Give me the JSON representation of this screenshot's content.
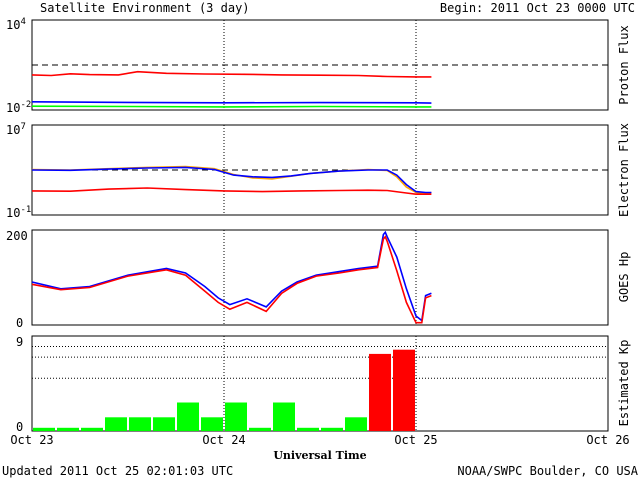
{
  "header": {
    "title": "Satellite Environment (3 day)",
    "begin": "Begin:  2011 Oct 23 0000 UTC"
  },
  "footer": {
    "updated": "Updated 2011 Oct 25 02:01:03 UTC",
    "credit": "NOAA/SWPC Boulder, CO USA"
  },
  "xaxis": {
    "label": "Universal Time",
    "ticks": [
      "Oct 23",
      "Oct 24",
      "Oct 25",
      "Oct 26"
    ]
  },
  "colors": {
    "red": "#ff0000",
    "blue": "#0000ff",
    "green": "#00ff00",
    "orange": "#ffa500"
  },
  "chart_data": [
    {
      "type": "line",
      "name": "proton-flux",
      "ylabel": "Proton Flux",
      "yscale": "log",
      "ylim": [
        0.01,
        10000
      ],
      "ytick_labels": [
        {
          "base": "10",
          "exp": "4"
        },
        {
          "base": "10",
          "exp": "-2"
        }
      ],
      "threshold": 10,
      "x_unit": "days since Oct 23 0000 UTC",
      "series": [
        {
          "color": "#ff0000",
          "x": [
            0,
            0.1,
            0.2,
            0.3,
            0.45,
            0.55,
            0.7,
            0.9,
            1.1,
            1.3,
            1.5,
            1.7,
            1.85,
            2.0,
            2.08
          ],
          "y": [
            2.2,
            2.0,
            2.6,
            2.3,
            2.2,
            3.6,
            2.8,
            2.5,
            2.4,
            2.2,
            2.1,
            2.0,
            1.7,
            1.6,
            1.6
          ]
        },
        {
          "color": "#0000ff",
          "x": [
            0,
            0.5,
            1.0,
            1.5,
            2.0,
            2.08
          ],
          "y": [
            0.035,
            0.032,
            0.03,
            0.031,
            0.03,
            0.029
          ]
        },
        {
          "color": "#00ff00",
          "x": [
            0,
            0.5,
            1.0,
            1.5,
            2.0,
            2.08
          ],
          "y": [
            0.018,
            0.017,
            0.016,
            0.017,
            0.016,
            0.016
          ]
        }
      ]
    },
    {
      "type": "line",
      "name": "electron-flux",
      "ylabel": "Electron Flux",
      "yscale": "log",
      "ylim": [
        0.1,
        10000000
      ],
      "ytick_labels": [
        {
          "base": "10",
          "exp": "7"
        },
        {
          "base": "10",
          "exp": "-1"
        }
      ],
      "threshold": 1000,
      "x_unit": "days since Oct 23 0000 UTC",
      "series": [
        {
          "color": "#ffa500",
          "x": [
            0,
            0.2,
            0.4,
            0.6,
            0.8,
            0.95,
            1.05,
            1.15,
            1.25,
            1.35,
            1.45,
            1.6,
            1.75,
            1.85,
            1.9,
            1.95,
            2.0,
            2.05,
            2.08
          ],
          "y": [
            1100,
            1000,
            1300,
            1700,
            2000,
            1300,
            400,
            200,
            160,
            280,
            500,
            800,
            1100,
            900,
            250,
            30,
            10,
            8,
            10
          ]
        },
        {
          "color": "#0000ff",
          "x": [
            0,
            0.2,
            0.4,
            0.6,
            0.8,
            0.95,
            1.05,
            1.15,
            1.25,
            1.35,
            1.45,
            1.6,
            1.75,
            1.85,
            1.9,
            1.95,
            2.0,
            2.05,
            2.08
          ],
          "y": [
            1000,
            950,
            1200,
            1500,
            1700,
            1100,
            350,
            250,
            220,
            300,
            500,
            800,
            1000,
            1000,
            350,
            50,
            12,
            10,
            10
          ]
        },
        {
          "color": "#ff0000",
          "x": [
            0,
            0.2,
            0.4,
            0.6,
            0.8,
            1.0,
            1.2,
            1.4,
            1.6,
            1.75,
            1.85,
            1.95,
            2.0,
            2.08
          ],
          "y": [
            14,
            13,
            20,
            25,
            18,
            14,
            12,
            14,
            15,
            16,
            15,
            9,
            7,
            7
          ]
        }
      ]
    },
    {
      "type": "line",
      "name": "goes-hp",
      "ylabel": "GOES Hp",
      "ylim": [
        0,
        210
      ],
      "ytick_labels": [
        "200",
        "0"
      ],
      "x_unit": "days since Oct 23 0000 UTC",
      "series": [
        {
          "color": "#0000ff",
          "x": [
            0,
            0.15,
            0.3,
            0.5,
            0.7,
            0.8,
            0.9,
            0.97,
            1.03,
            1.12,
            1.22,
            1.3,
            1.38,
            1.48,
            1.6,
            1.7,
            1.8,
            1.83,
            1.84,
            1.85,
            1.9,
            1.95,
            2.0,
            2.03,
            2.05,
            2.08
          ],
          "y": [
            95,
            80,
            85,
            110,
            125,
            115,
            85,
            60,
            45,
            58,
            40,
            75,
            95,
            110,
            118,
            125,
            130,
            200,
            205,
            195,
            150,
            80,
            20,
            10,
            65,
            70
          ]
        },
        {
          "color": "#ff0000",
          "x": [
            0,
            0.15,
            0.3,
            0.5,
            0.7,
            0.8,
            0.9,
            0.97,
            1.03,
            1.12,
            1.22,
            1.3,
            1.38,
            1.48,
            1.6,
            1.7,
            1.8,
            1.83,
            1.84,
            1.85,
            1.9,
            1.95,
            2.0,
            2.03,
            2.05,
            2.08
          ],
          "y": [
            90,
            78,
            83,
            108,
            122,
            110,
            75,
            50,
            35,
            50,
            30,
            70,
            92,
            108,
            115,
            122,
            127,
            190,
            195,
            185,
            120,
            50,
            5,
            5,
            60,
            65
          ]
        }
      ]
    },
    {
      "type": "bar",
      "name": "estimated-kp",
      "ylabel": "Estimated Kp",
      "ylim": [
        0,
        9
      ],
      "ytick_labels": [
        "9",
        "0"
      ],
      "x_unit": "3-hour intervals from Oct 23 0000 UTC",
      "values": [
        0.3,
        0.3,
        0.3,
        1.3,
        1.3,
        1.3,
        2.7,
        1.3,
        2.7,
        0.3,
        2.7,
        0.3,
        0.3,
        1.3,
        7.3,
        7.7
      ],
      "bar_colors": [
        "#00ff00",
        "#00ff00",
        "#00ff00",
        "#00ff00",
        "#00ff00",
        "#00ff00",
        "#00ff00",
        "#00ff00",
        "#00ff00",
        "#00ff00",
        "#00ff00",
        "#00ff00",
        "#00ff00",
        "#00ff00",
        "#ff0000",
        "#ff0000"
      ],
      "reference_lines": [
        5,
        7,
        8,
        9
      ]
    }
  ]
}
